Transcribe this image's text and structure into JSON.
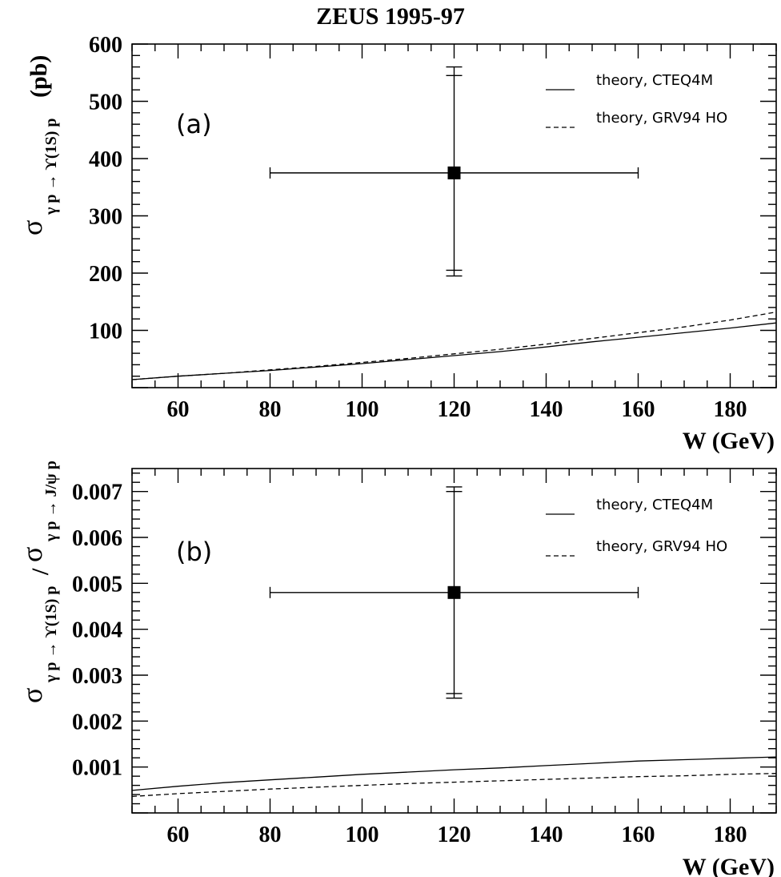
{
  "title": "ZEUS 1995-97",
  "chart_data": [
    {
      "type": "line",
      "panel": "(a)",
      "xlabel": "W (GeV)",
      "ylabel": {
        "symbol": "σ",
        "subscript": "γ p → ϒ(1S) p",
        "suffix": "(pb)"
      },
      "xlim": [
        50,
        190
      ],
      "ylim": [
        0,
        600
      ],
      "x_ticks": [
        60,
        80,
        100,
        120,
        140,
        160,
        180
      ],
      "x_tick_labels": [
        "60",
        "80",
        "100",
        "120",
        "140",
        "160",
        "180"
      ],
      "y_ticks": [
        100,
        200,
        300,
        400,
        500,
        600
      ],
      "y_tick_labels": [
        "100",
        "200",
        "300",
        "400",
        "500",
        "600"
      ],
      "grid": false,
      "legend_position": "top-right",
      "series": [
        {
          "name": "theory, CTEQ4M",
          "style": "solid",
          "x": [
            50,
            60,
            70,
            80,
            90,
            100,
            110,
            120,
            130,
            140,
            150,
            160,
            170,
            180,
            190
          ],
          "y": [
            14,
            20,
            25,
            30,
            36,
            42,
            49,
            56,
            63,
            71,
            80,
            88,
            96,
            104,
            113
          ]
        },
        {
          "name": "theory, GRV94 HO",
          "style": "dashed",
          "x": [
            50,
            60,
            70,
            80,
            90,
            100,
            110,
            120,
            130,
            140,
            150,
            160,
            170,
            180,
            190
          ],
          "y": [
            14,
            20,
            25,
            31,
            37,
            44,
            51,
            59,
            67,
            76,
            86,
            96,
            106,
            118,
            132
          ]
        }
      ],
      "points": [
        {
          "x": 120,
          "y": 375,
          "xerr": [
            80,
            160
          ],
          "yerr_inner": [
            205,
            545
          ],
          "yerr_outer": [
            195,
            560
          ]
        }
      ]
    },
    {
      "type": "line",
      "panel": "(b)",
      "xlabel": "W (GeV)",
      "ylabel": {
        "symbol": "σ",
        "subscript1": "γ p → ϒ(1S) p",
        "slash": "/",
        "subscript2": "γ p → J/ψ p"
      },
      "xlim": [
        50,
        190
      ],
      "ylim": [
        0,
        0.0075
      ],
      "x_ticks": [
        60,
        80,
        100,
        120,
        140,
        160,
        180
      ],
      "x_tick_labels": [
        "60",
        "80",
        "100",
        "120",
        "140",
        "160",
        "180"
      ],
      "y_ticks": [
        0.001,
        0.002,
        0.003,
        0.004,
        0.005,
        0.006,
        0.007
      ],
      "y_tick_labels": [
        "0.001",
        "0.002",
        "0.003",
        "0.004",
        "0.005",
        "0.006",
        "0.007"
      ],
      "grid": false,
      "legend_position": "top-right",
      "series": [
        {
          "name": "theory, CTEQ4M",
          "style": "solid",
          "x": [
            50,
            60,
            70,
            80,
            90,
            100,
            110,
            120,
            130,
            140,
            150,
            160,
            170,
            180,
            190
          ],
          "y": [
            0.00049,
            0.00058,
            0.00066,
            0.00072,
            0.00078,
            0.00084,
            0.00089,
            0.00094,
            0.00098,
            0.00103,
            0.00108,
            0.00113,
            0.00116,
            0.00119,
            0.00122
          ]
        },
        {
          "name": "theory, GRV94 HO",
          "style": "dashed",
          "x": [
            50,
            60,
            70,
            80,
            90,
            100,
            110,
            120,
            130,
            140,
            150,
            160,
            170,
            180,
            190
          ],
          "y": [
            0.00036,
            0.00042,
            0.00047,
            0.00052,
            0.00056,
            0.0006,
            0.00064,
            0.00067,
            0.0007,
            0.00073,
            0.00076,
            0.00079,
            0.00081,
            0.00084,
            0.00086
          ]
        }
      ],
      "points": [
        {
          "x": 120,
          "y": 0.0048,
          "xerr": [
            80,
            160
          ],
          "yerr_inner": [
            0.0026,
            0.007
          ],
          "yerr_outer": [
            0.0025,
            0.0071
          ]
        }
      ]
    }
  ]
}
